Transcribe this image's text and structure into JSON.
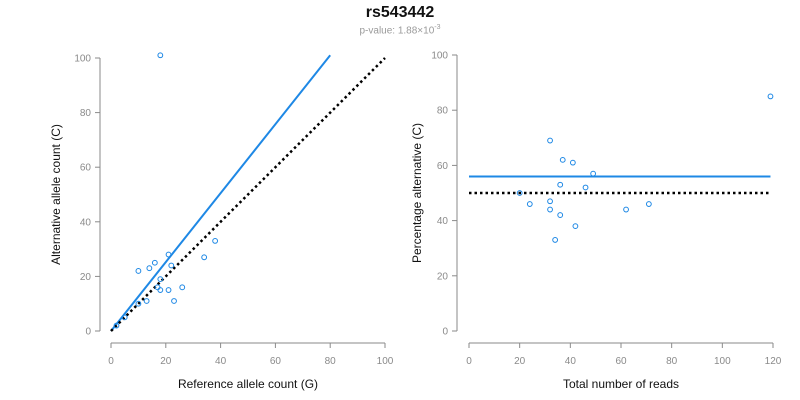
{
  "title": "rs543442",
  "subtitle": {
    "prefix": "p-value: 1.88×10",
    "exponent": "-3"
  },
  "colors": {
    "accent": "#1e88e5",
    "axis": "#8a8a8a",
    "reference": "#000000"
  },
  "chart_data": [
    {
      "type": "scatter",
      "xlabel": "Reference allele count (G)",
      "ylabel": "Alternative allele count (C)",
      "xlim": [
        0,
        100
      ],
      "ylim": [
        0,
        100
      ],
      "xticks": [
        0,
        20,
        40,
        60,
        80,
        100
      ],
      "yticks": [
        0,
        20,
        40,
        60,
        80,
        100
      ],
      "points": [
        [
          18,
          101
        ],
        [
          10,
          22
        ],
        [
          14,
          23
        ],
        [
          16,
          25
        ],
        [
          21,
          28
        ],
        [
          22,
          24
        ],
        [
          34,
          27
        ],
        [
          38,
          33
        ],
        [
          17,
          16
        ],
        [
          18,
          15
        ],
        [
          21,
          15
        ],
        [
          23,
          11
        ],
        [
          13,
          11
        ],
        [
          10,
          10
        ],
        [
          26,
          16
        ],
        [
          18,
          19
        ],
        [
          2,
          2
        ],
        [
          5,
          5
        ]
      ],
      "lines": [
        {
          "style": "solid",
          "color": "#1e88e5",
          "from": [
            0,
            0
          ],
          "to": [
            80,
            101
          ]
        },
        {
          "style": "dotted",
          "color": "#000000",
          "from": [
            0,
            0
          ],
          "to": [
            100,
            100
          ]
        }
      ]
    },
    {
      "type": "scatter",
      "xlabel": "Total number of reads",
      "ylabel": "Percentage alternative (C)",
      "xlim": [
        0,
        120
      ],
      "ylim": [
        0,
        100
      ],
      "xticks": [
        0,
        20,
        40,
        60,
        80,
        100,
        120
      ],
      "yticks": [
        0,
        20,
        40,
        60,
        80,
        100
      ],
      "points": [
        [
          119,
          85
        ],
        [
          32,
          69
        ],
        [
          37,
          62
        ],
        [
          41,
          61
        ],
        [
          49,
          57
        ],
        [
          36,
          53
        ],
        [
          46,
          52
        ],
        [
          20,
          50
        ],
        [
          32,
          47
        ],
        [
          24,
          46
        ],
        [
          32,
          44
        ],
        [
          36,
          42
        ],
        [
          42,
          38
        ],
        [
          62,
          44
        ],
        [
          71,
          46
        ],
        [
          34,
          33
        ]
      ],
      "lines": [
        {
          "style": "solid",
          "color": "#1e88e5",
          "from": [
            0,
            56
          ],
          "to": [
            119,
            56
          ]
        },
        {
          "style": "dotted",
          "color": "#000000",
          "from": [
            0,
            50
          ],
          "to": [
            119,
            50
          ]
        }
      ]
    }
  ]
}
